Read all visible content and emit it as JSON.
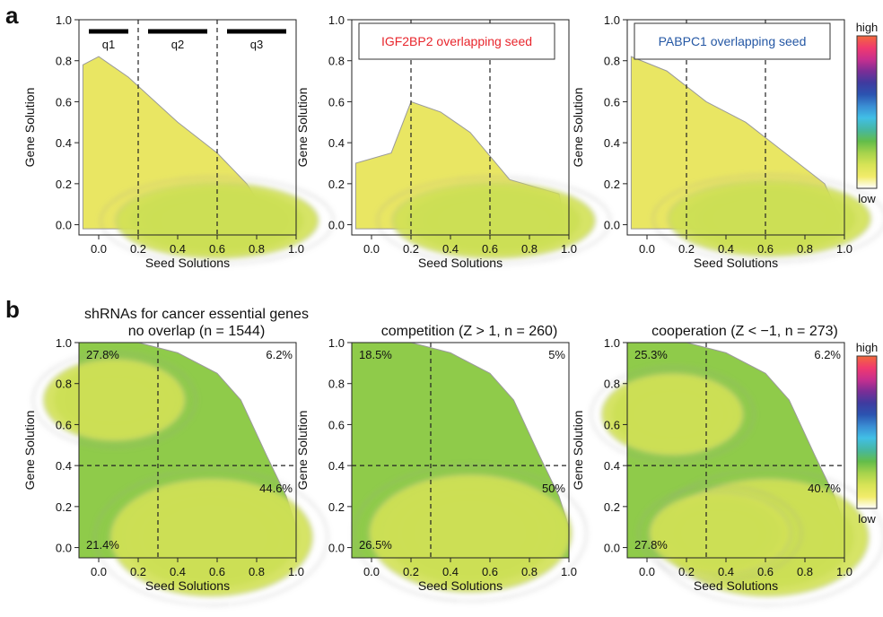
{
  "panel_labels": {
    "a": "a",
    "b": "b"
  },
  "colorbar": {
    "high": "high",
    "low": "low",
    "stops": [
      "#ffffff",
      "#f2ec6a",
      "#d7e356",
      "#a7d34c",
      "#63bd4a",
      "#46b7a2",
      "#41bfe6",
      "#3a8ed4",
      "#2b54b1",
      "#3f3b9f",
      "#7c2e96",
      "#c82f8e",
      "#f03a6e",
      "#f36a3c"
    ]
  },
  "colors": {
    "contour": "#9a9a9a",
    "dashed": "#222222"
  },
  "chart_data": [
    {
      "type": "heatmap",
      "xlabel": "Seed Solutions",
      "ylabel": "Gene Solution",
      "xlim": [
        -0.1,
        1.0
      ],
      "ylim": [
        -0.05,
        1.0
      ],
      "xticks": [
        "0.0",
        "0.2",
        "0.4",
        "0.6",
        "0.8",
        "1.0"
      ],
      "yticks": [
        "0.0",
        "0.2",
        "0.4",
        "0.6",
        "0.8",
        "1.0"
      ],
      "vlines": [
        0.2,
        0.6
      ],
      "bars": [
        {
          "label": "q1",
          "from": -0.05,
          "to": 0.15
        },
        {
          "label": "q2",
          "from": 0.25,
          "to": 0.55
        },
        {
          "label": "q3",
          "from": 0.65,
          "to": 0.95
        }
      ],
      "peak": {
        "x": 0.6,
        "y": 0.02
      }
    },
    {
      "type": "heatmap",
      "title": "IGF2BP2 overlapping seed",
      "title_color": "#e8262d",
      "xlabel": "Seed Solutions",
      "ylabel": "Gene Solution",
      "xlim": [
        -0.1,
        1.0
      ],
      "ylim": [
        -0.05,
        1.0
      ],
      "xticks": [
        "0.0",
        "0.2",
        "0.4",
        "0.6",
        "0.8",
        "1.0"
      ],
      "yticks": [
        "0.0",
        "0.2",
        "0.4",
        "0.6",
        "0.8",
        "1.0"
      ],
      "vlines": [
        0.2,
        0.6
      ],
      "peak": {
        "x": 0.62,
        "y": 0.02
      }
    },
    {
      "type": "heatmap",
      "title": "PABPC1 overlapping seed",
      "title_color": "#2457a4",
      "xlabel": "Seed Solutions",
      "ylabel": "Gene Solution",
      "xlim": [
        -0.1,
        1.0
      ],
      "ylim": [
        -0.05,
        1.0
      ],
      "xticks": [
        "0.0",
        "0.2",
        "0.4",
        "0.6",
        "0.8",
        "1.0"
      ],
      "yticks": [
        "0.0",
        "0.2",
        "0.4",
        "0.6",
        "0.8",
        "1.0"
      ],
      "vlines": [
        0.2,
        0.6
      ],
      "peak": {
        "x": 0.62,
        "y": 0.03
      }
    },
    {
      "type": "heatmap",
      "title": [
        "shRNAs for cancer essential genes",
        "no overlap (n = 1544)"
      ],
      "xlabel": "Seed Solutions",
      "ylabel": "Gene Solution",
      "xlim": [
        -0.1,
        1.0
      ],
      "ylim": [
        -0.05,
        1.0
      ],
      "xticks": [
        "0.0",
        "0.2",
        "0.4",
        "0.6",
        "0.8",
        "1.0"
      ],
      "yticks": [
        "0.0",
        "0.2",
        "0.4",
        "0.6",
        "0.8",
        "1.0"
      ],
      "vline": 0.3,
      "hline": 0.4,
      "quadrants": {
        "top_left": "27.8%",
        "top_right": "6.2%",
        "bottom_right": "44.6%",
        "bottom_left": "21.4%"
      },
      "peaks": [
        {
          "x": 0.57,
          "y": 0.05
        },
        {
          "x": 0.08,
          "y": 0.72
        }
      ]
    },
    {
      "type": "heatmap",
      "title": "competition (Z > 1, n = 260)",
      "xlabel": "Seed Solutions",
      "ylabel": "Gene Solution",
      "xlim": [
        -0.1,
        1.0
      ],
      "ylim": [
        -0.05,
        1.0
      ],
      "xticks": [
        "0.0",
        "0.2",
        "0.4",
        "0.6",
        "0.8",
        "1.0"
      ],
      "yticks": [
        "0.0",
        "0.2",
        "0.4",
        "0.6",
        "0.8",
        "1.0"
      ],
      "vline": 0.3,
      "hline": 0.4,
      "quadrants": {
        "top_left": "18.5%",
        "top_right": "5%",
        "bottom_right": "50%",
        "bottom_left": "26.5%"
      },
      "peaks": [
        {
          "x": 0.5,
          "y": 0.07
        }
      ]
    },
    {
      "type": "heatmap",
      "title": "cooperation (Z < −1, n = 273)",
      "xlabel": "Seed Solutions",
      "ylabel": "Gene Solution",
      "xlim": [
        -0.1,
        1.0
      ],
      "ylim": [
        -0.05,
        1.0
      ],
      "xticks": [
        "0.0",
        "0.2",
        "0.4",
        "0.6",
        "0.8",
        "1.0"
      ],
      "yticks": [
        "0.0",
        "0.2",
        "0.4",
        "0.6",
        "0.8",
        "1.0"
      ],
      "vline": 0.3,
      "hline": 0.4,
      "quadrants": {
        "top_left": "25.3%",
        "top_right": "6.2%",
        "bottom_right": "40.7%",
        "bottom_left": "27.8%"
      },
      "peaks": [
        {
          "x": 0.61,
          "y": 0.05
        },
        {
          "x": 0.37,
          "y": 0.07
        },
        {
          "x": 0.13,
          "y": 0.65
        }
      ]
    }
  ]
}
